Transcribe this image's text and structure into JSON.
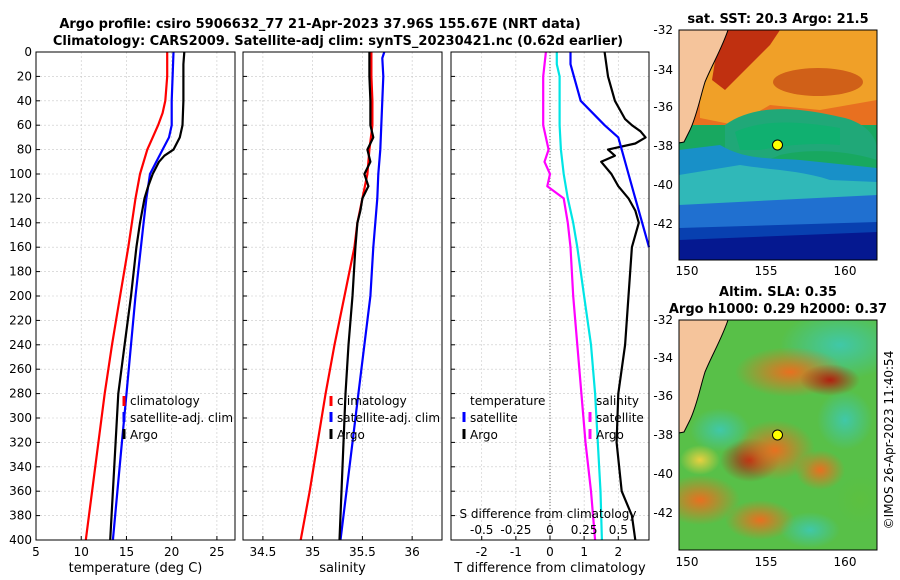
{
  "header": {
    "title_line1": "Argo profile: csiro 5906632_77 21-Apr-2023 37.96S 155.67E (NRT data)",
    "title_line2": "Climatology: CARS2009. Satellite-adj clim: synTS_20230421.nc (0.62d earlier)"
  },
  "credit": "©IMOS 26-Apr-2023 11:40:54",
  "colors": {
    "climatology": "#ff0000",
    "satellite": "#0000ff",
    "argo": "#000000",
    "t_diff_argo": "#000000",
    "t_diff_sat": "#0000ff",
    "s_diff_argo": "#00e5e5",
    "s_diff_sat": "#ff00ff",
    "land": "#f5c49b",
    "float_marker": "#ffff00"
  },
  "depth_ticks": [
    0,
    20,
    40,
    60,
    80,
    100,
    120,
    140,
    160,
    180,
    200,
    220,
    240,
    260,
    280,
    300,
    320,
    340,
    360,
    380,
    400
  ],
  "chart_data": [
    {
      "id": "temperature",
      "type": "line",
      "xlabel": "temperature (deg C)",
      "ylabel": "",
      "xlim": [
        5,
        27
      ],
      "ylim": [
        400,
        0
      ],
      "xticks": [
        5,
        10,
        15,
        20,
        25
      ],
      "xtick_labels": [
        "5",
        "10",
        "15",
        "20",
        "25"
      ],
      "legend": {
        "placement": "bottom-right",
        "entries": [
          "climatology",
          "satellite-adj. clim",
          "Argo"
        ]
      },
      "series": [
        {
          "name": "climatology",
          "color": "#ff0000",
          "depth": [
            0,
            20,
            40,
            50,
            60,
            70,
            80,
            100,
            120,
            140,
            160,
            200,
            240,
            280,
            320,
            360,
            400
          ],
          "values": [
            19.5,
            19.5,
            19.3,
            19.0,
            18.5,
            17.9,
            17.3,
            16.5,
            16.0,
            15.6,
            15.2,
            14.3,
            13.4,
            12.6,
            11.9,
            11.2,
            10.5
          ]
        },
        {
          "name": "satellite-adj. clim",
          "color": "#0000ff",
          "depth": [
            0,
            20,
            40,
            60,
            70,
            80,
            90,
            100,
            120,
            140,
            160,
            200,
            240,
            280,
            320,
            360,
            400
          ],
          "values": [
            20.2,
            20.1,
            20.0,
            20.0,
            19.7,
            19.0,
            18.3,
            17.6,
            17.2,
            16.9,
            16.6,
            16.0,
            15.5,
            15.0,
            14.5,
            14.0,
            13.5
          ]
        },
        {
          "name": "Argo",
          "color": "#000000",
          "depth": [
            0,
            10,
            20,
            40,
            60,
            70,
            80,
            85,
            90,
            100,
            110,
            120,
            140,
            160,
            200,
            240,
            280,
            320,
            360,
            400
          ],
          "values": [
            21.4,
            21.3,
            21.3,
            21.3,
            21.2,
            20.9,
            20.2,
            19.2,
            18.6,
            17.9,
            17.4,
            17.0,
            16.5,
            16.1,
            15.5,
            14.8,
            14.1,
            13.8,
            13.5,
            13.2
          ]
        }
      ]
    },
    {
      "id": "salinity",
      "type": "line",
      "xlabel": "salinity",
      "ylabel": "",
      "xlim": [
        34.3,
        36.3
      ],
      "ylim": [
        400,
        0
      ],
      "xticks": [
        34.5,
        35,
        35.5,
        36
      ],
      "xtick_labels": [
        "34.5",
        "35",
        "35.5",
        "36"
      ],
      "legend": {
        "placement": "bottom-right",
        "entries": [
          "climatology",
          "satellite-adj. clim",
          "Argo"
        ]
      },
      "series": [
        {
          "name": "climatology",
          "color": "#ff0000",
          "depth": [
            0,
            20,
            40,
            60,
            80,
            100,
            120,
            140,
            160,
            200,
            240,
            280,
            320,
            360,
            400
          ],
          "values": [
            35.59,
            35.59,
            35.6,
            35.6,
            35.57,
            35.55,
            35.5,
            35.45,
            35.42,
            35.32,
            35.22,
            35.13,
            35.05,
            34.97,
            34.88
          ]
        },
        {
          "name": "satellite-adj. clim",
          "color": "#0000ff",
          "depth": [
            0,
            5,
            20,
            40,
            60,
            80,
            100,
            120,
            140,
            160,
            200,
            240,
            280,
            320,
            360,
            400
          ],
          "values": [
            35.72,
            35.7,
            35.71,
            35.7,
            35.69,
            35.68,
            35.66,
            35.65,
            35.63,
            35.61,
            35.58,
            35.52,
            35.46,
            35.4,
            35.34,
            35.28
          ]
        },
        {
          "name": "Argo",
          "color": "#000000",
          "depth": [
            0,
            20,
            40,
            60,
            70,
            80,
            90,
            100,
            110,
            120,
            130,
            140,
            160,
            200,
            240,
            280,
            320,
            360,
            400
          ],
          "values": [
            35.57,
            35.57,
            35.58,
            35.58,
            35.61,
            35.55,
            35.58,
            35.52,
            35.56,
            35.5,
            35.48,
            35.45,
            35.43,
            35.4,
            35.36,
            35.33,
            35.31,
            35.29,
            35.27
          ]
        }
      ]
    },
    {
      "id": "difference",
      "type": "line",
      "xlabel": "T difference from climatology",
      "top_label": "S difference from climatology",
      "ylabel": "",
      "xlim": [
        -2.9,
        2.9
      ],
      "ylim": [
        400,
        0
      ],
      "xticks": [
        -2,
        -1,
        0,
        1,
        2
      ],
      "xtick_labels": [
        "-2",
        "-1",
        "0",
        "1",
        "2"
      ],
      "s_xlim": [
        -0.725,
        0.725
      ],
      "s_xticks": [
        -0.5,
        -0.25,
        0,
        0.25,
        0.5
      ],
      "s_xtick_labels": [
        "-0.5",
        "-0.25",
        "0",
        "0.25",
        "0.5"
      ],
      "legend": {
        "placement": "bottom",
        "temperature_heading": "temperature",
        "salinity_heading": "salinity",
        "entries": [
          "satellite",
          "Argo",
          "satellite",
          "Argo"
        ]
      },
      "series": [
        {
          "name": "T diff Argo",
          "color": "#000000",
          "axis": "T",
          "depth": [
            0,
            20,
            40,
            55,
            60,
            65,
            70,
            75,
            80,
            85,
            90,
            100,
            110,
            120,
            130,
            140,
            160,
            200,
            240,
            280,
            320,
            360,
            380,
            400
          ],
          "values": [
            1.6,
            1.7,
            1.9,
            2.2,
            2.4,
            2.65,
            2.8,
            2.5,
            1.7,
            1.9,
            1.5,
            1.8,
            2.0,
            2.3,
            2.5,
            2.6,
            2.4,
            2.3,
            2.2,
            2.0,
            1.95,
            2.1,
            2.4,
            2.5
          ]
        },
        {
          "name": "T diff satellite",
          "color": "#0000ff",
          "axis": "T",
          "depth": [
            0,
            10,
            20,
            40,
            60,
            70,
            80,
            100,
            120,
            140,
            160
          ],
          "values": [
            0.6,
            0.6,
            0.7,
            0.9,
            1.6,
            2.0,
            2.1,
            2.3,
            2.5,
            2.7,
            2.9
          ]
        },
        {
          "name": "S diff Argo",
          "color": "#00e5e5",
          "axis": "S",
          "depth": [
            0,
            10,
            20,
            40,
            60,
            80,
            100,
            120,
            140,
            160,
            200,
            240,
            280,
            320,
            360,
            400
          ],
          "values": [
            0.05,
            0.05,
            0.07,
            0.07,
            0.07,
            0.08,
            0.1,
            0.13,
            0.17,
            0.2,
            0.25,
            0.3,
            0.33,
            0.35,
            0.37,
            0.38
          ]
        },
        {
          "name": "S diff satellite",
          "color": "#ff00ff",
          "axis": "S",
          "depth": [
            0,
            20,
            40,
            60,
            80,
            90,
            100,
            110,
            120,
            140,
            160,
            200,
            240,
            280,
            320,
            360,
            400
          ],
          "values": [
            -0.03,
            -0.05,
            -0.05,
            -0.05,
            -0.01,
            -0.04,
            0.0,
            -0.02,
            0.1,
            0.13,
            0.15,
            0.17,
            0.2,
            0.23,
            0.26,
            0.3,
            0.33
          ]
        }
      ]
    }
  ],
  "maps": {
    "sst": {
      "title": "sat. SST: 20.3 Argo: 21.5",
      "yticks": [
        "-32",
        "-34",
        "-36",
        "-38",
        "-40",
        "-42"
      ],
      "xticks": [
        "150",
        "155",
        "160"
      ]
    },
    "sla": {
      "title_line1": "Altim. SLA: 0.35",
      "title_line2": "Argo h1000: 0.29 h2000: 0.37",
      "yticks": [
        "-32",
        "-34",
        "-36",
        "-38",
        "-40",
        "-42"
      ],
      "xticks": [
        "150",
        "155",
        "160"
      ]
    }
  }
}
